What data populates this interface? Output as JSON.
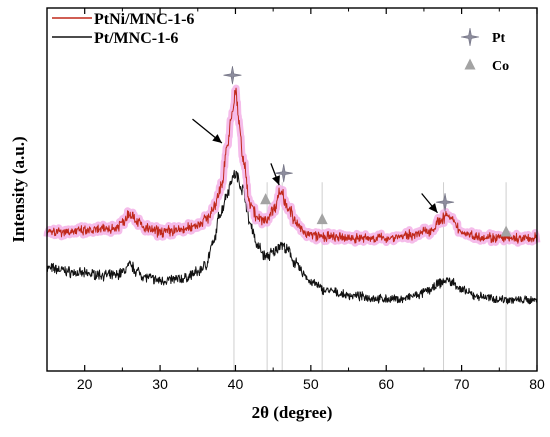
{
  "chart_data": {
    "type": "line",
    "xlabel": "2θ (degree)",
    "ylabel": "Intensity (a.u.)",
    "xlim": [
      15,
      80
    ],
    "x_ticks": [
      20,
      30,
      40,
      50,
      60,
      70,
      80
    ],
    "y_ticks_shown": false,
    "grid": false,
    "legend_position": "top-left",
    "series": [
      {
        "name": "PtNi/MNC-1-6",
        "color": "#c0281a",
        "halo_color": "#f3b0e6",
        "noise": 3.5,
        "x": [
          15,
          20,
          24,
          25,
          26,
          27,
          28,
          30,
          33,
          35,
          36,
          37,
          38,
          39,
          39.5,
          40,
          40.5,
          41,
          42,
          43,
          44,
          45,
          46,
          47,
          48,
          49,
          50,
          52,
          55,
          60,
          62,
          64,
          66,
          67,
          68,
          69,
          70,
          72,
          75,
          78,
          80
        ],
        "y": [
          38.5,
          38.5,
          39.3,
          41,
          43.6,
          41.3,
          39.2,
          38.4,
          38.9,
          40.3,
          41.8,
          44.1,
          50,
          62.8,
          70,
          77.2,
          68.3,
          57.9,
          46.3,
          41.8,
          41.5,
          44.4,
          49.4,
          45.3,
          40.7,
          38.4,
          37.5,
          36.9,
          36.6,
          36.6,
          37.1,
          37.7,
          38.9,
          41.1,
          42.8,
          40.9,
          38.2,
          37.1,
          36.6,
          36.4,
          36.6
        ]
      },
      {
        "name": "Pt/MNC-1-6",
        "color": "#111111",
        "halo_color": "",
        "noise": 3.0,
        "x": [
          15,
          20,
          24,
          25,
          26,
          27,
          28,
          30,
          33,
          35,
          36,
          37,
          38,
          39,
          39.5,
          40,
          41,
          42,
          43,
          44,
          45,
          46,
          47,
          48,
          49,
          50,
          52,
          55,
          60,
          62,
          64,
          66,
          67,
          68,
          69,
          70,
          72,
          75,
          78,
          80
        ],
        "y": [
          28.3,
          26.8,
          26.3,
          27.2,
          29.1,
          27.4,
          25.9,
          24.9,
          25.4,
          27.2,
          29.1,
          34.7,
          43.6,
          49.4,
          53.1,
          54.2,
          50,
          40.3,
          34.2,
          31.5,
          32.5,
          34.9,
          33,
          29.5,
          26.9,
          24.4,
          22.2,
          20.8,
          19.8,
          19.8,
          20.8,
          22.5,
          24.1,
          25,
          24.2,
          22.2,
          20.6,
          19.8,
          19.5,
          19.6
        ]
      }
    ],
    "reference_lines": [
      {
        "x": 39.8,
        "type": "Pt"
      },
      {
        "x": 44.2,
        "type": "Co"
      },
      {
        "x": 46.2,
        "type": "Pt"
      },
      {
        "x": 51.5,
        "type": "Co"
      },
      {
        "x": 67.6,
        "type": "Pt"
      },
      {
        "x": 75.9,
        "type": "Co"
      }
    ],
    "phase_markers": [
      {
        "x": 39.6,
        "y": 81.5,
        "type": "Pt"
      },
      {
        "x": 46.4,
        "y": 54.5,
        "type": "Pt"
      },
      {
        "x": 67.8,
        "y": 46.5,
        "type": "Pt"
      },
      {
        "x": 44.0,
        "y": 47.2,
        "type": "Co"
      },
      {
        "x": 51.5,
        "y": 41.7,
        "type": "Co"
      },
      {
        "x": 75.9,
        "y": 38.3,
        "type": "Co"
      }
    ],
    "arrows": [
      {
        "from": [
          34.3,
          69.4
        ],
        "to": [
          38.2,
          62.8
        ]
      },
      {
        "from": [
          44.7,
          57.2
        ],
        "to": [
          45.8,
          51.2
        ]
      },
      {
        "from": [
          64.7,
          48.9
        ],
        "to": [
          66.8,
          43.6
        ]
      }
    ],
    "marker_legend": [
      {
        "type": "Pt",
        "label": "Pt"
      },
      {
        "type": "Co",
        "label": "Co"
      }
    ],
    "colors": {
      "pt_marker": "#8d8d9d",
      "co_marker": "#a3a3a3",
      "reference_line": "#cfcfcf"
    }
  }
}
